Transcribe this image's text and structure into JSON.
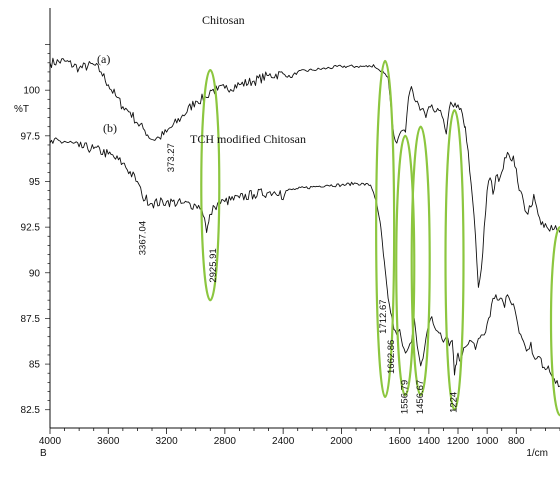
{
  "chart_data": {
    "type": "line",
    "title": "Chitosan",
    "ylabel": "%T",
    "xlabel": "1/cm",
    "x_axis_marker": "B",
    "xlim": [
      4000,
      500
    ],
    "ylim": [
      81.5,
      104.5
    ],
    "x_ticks": [
      4000,
      3600,
      3200,
      2800,
      2400,
      2000,
      1600,
      1400,
      1200,
      1000,
      800
    ],
    "x_tick_labels": [
      "4000",
      "3600",
      "3200",
      "2800",
      "2400",
      "2000",
      "1600",
      "1400",
      "1200",
      "1000",
      "800"
    ],
    "y_ticks": [
      100,
      97.5,
      95,
      92.5,
      90,
      87.5,
      85,
      82.5
    ],
    "y_tick_labels": [
      "100",
      "97.5",
      "95",
      "92.5",
      "90",
      "87.5",
      "85",
      "82.5"
    ],
    "grid": false,
    "series": [
      {
        "name": "Chitosan",
        "marker": "(a)",
        "color": "#111111",
        "x": [
          4000,
          3900,
          3800,
          3700,
          3650,
          3600,
          3550,
          3500,
          3450,
          3400,
          3350,
          3300,
          3250,
          3200,
          3100,
          3000,
          2925,
          2900,
          2850,
          2800,
          2700,
          2600,
          2500,
          2400,
          2350,
          2300,
          2200,
          2100,
          2000,
          1900,
          1800,
          1780,
          1760,
          1740,
          1712,
          1700,
          1680,
          1655,
          1640,
          1620,
          1600,
          1580,
          1560,
          1540,
          1520,
          1500,
          1480,
          1460,
          1440,
          1420,
          1400,
          1380,
          1360,
          1340,
          1320,
          1300,
          1280,
          1260,
          1240,
          1220,
          1200,
          1180,
          1160,
          1150,
          1100,
          1080,
          1060,
          1040,
          1020,
          1000,
          980,
          960,
          940,
          920,
          900,
          880,
          860,
          840,
          820,
          800,
          780,
          760,
          740,
          720,
          700,
          680,
          660,
          640,
          620,
          600,
          580,
          560,
          540,
          520,
          500
        ],
        "y": [
          101.5,
          101.6,
          101.2,
          101.4,
          101.0,
          100.3,
          99.7,
          99.1,
          98.8,
          98.2,
          97.8,
          97.3,
          97.4,
          97.7,
          98.5,
          99.4,
          99.6,
          100.0,
          100.0,
          100.1,
          100.3,
          100.5,
          100.8,
          100.9,
          100.7,
          101.0,
          101.1,
          101.2,
          101.3,
          101.3,
          101.3,
          101.4,
          101.2,
          101.1,
          101.0,
          100.9,
          100.7,
          98.6,
          97.5,
          97.1,
          97.6,
          97.8,
          97.7,
          99.6,
          100.2,
          99.5,
          99.4,
          98.9,
          99.0,
          98.5,
          99.1,
          99.2,
          98.8,
          99.0,
          98.9,
          98.4,
          97.6,
          99.0,
          99.2,
          99.3,
          99.2,
          99.0,
          98.2,
          98.0,
          94.0,
          92.0,
          89.2,
          90.2,
          92.5,
          94.5,
          95.2,
          94.3,
          95.3,
          95.0,
          95.5,
          96.3,
          96.6,
          96.2,
          96.4,
          95.7,
          94.5,
          94.3,
          93.4,
          93.2,
          93.6,
          94.3,
          93.6,
          93.0,
          92.8,
          92.7,
          92.4,
          92.6,
          92.4,
          92.3,
          92.2
        ]
      },
      {
        "name": "TCH modified Chitosan",
        "marker": "(b)",
        "color": "#111111",
        "x": [
          4000,
          3900,
          3800,
          3700,
          3600,
          3500,
          3400,
          3367,
          3300,
          3200,
          3100,
          3000,
          2960,
          2940,
          2925,
          2910,
          2900,
          2870,
          2850,
          2800,
          2700,
          2600,
          2500,
          2420,
          2400,
          2380,
          2300,
          2200,
          2100,
          2000,
          1900,
          1800,
          1780,
          1760,
          1740,
          1730,
          1712,
          1700,
          1690,
          1680,
          1662,
          1650,
          1640,
          1620,
          1600,
          1580,
          1560,
          1540,
          1520,
          1500,
          1480,
          1456,
          1440,
          1420,
          1400,
          1380,
          1360,
          1340,
          1320,
          1300,
          1280,
          1260,
          1240,
          1224,
          1210,
          1200,
          1180,
          1160,
          1140,
          1120,
          1100,
          1080,
          1060,
          1040,
          1020,
          1000,
          980,
          960,
          940,
          920,
          900,
          880,
          860,
          840,
          820,
          800,
          780,
          760,
          740,
          720,
          700,
          680,
          660,
          640,
          620,
          600,
          580,
          560,
          540,
          520,
          500
        ],
        "y": [
          97.1,
          97.2,
          96.9,
          96.8,
          96.5,
          96.0,
          95.0,
          94.2,
          93.8,
          93.9,
          93.8,
          93.7,
          93.6,
          93.0,
          92.2,
          92.8,
          93.2,
          93.6,
          93.8,
          93.9,
          94.1,
          94.3,
          94.4,
          94.5,
          94.0,
          94.5,
          94.6,
          94.7,
          94.8,
          94.8,
          94.9,
          94.8,
          94.4,
          93.9,
          93.0,
          92.5,
          91.0,
          90.2,
          89.4,
          88.6,
          87.8,
          87.4,
          86.9,
          86.6,
          86.9,
          86.0,
          85.6,
          85.9,
          86.2,
          87.5,
          86.0,
          84.9,
          85.3,
          86.4,
          87.2,
          87.6,
          87.0,
          86.8,
          86.7,
          86.2,
          86.5,
          86.0,
          86.3,
          84.4,
          85.0,
          85.6,
          85.1,
          85.9,
          86.0,
          86.3,
          86.2,
          85.8,
          86.4,
          86.6,
          86.6,
          87.2,
          87.6,
          88.6,
          88.8,
          88.5,
          88.6,
          88.1,
          88.8,
          88.4,
          88.3,
          87.6,
          86.7,
          86.4,
          86.0,
          85.8,
          86.2,
          85.4,
          85.3,
          85.4,
          84.8,
          84.7,
          84.9,
          84.4,
          84.2,
          84.1,
          83.8
        ]
      }
    ],
    "annotations": [
      {
        "text": "373.27",
        "x": 3150,
        "y": 96.3,
        "rotate": -90
      },
      {
        "text": "3367.04",
        "x": 3345,
        "y": 91.9,
        "rotate": -90
      },
      {
        "text": "2925.91",
        "x": 2860,
        "y": 90.4,
        "rotate": -90
      },
      {
        "text": "1712.67",
        "x": 1695,
        "y": 87.6,
        "rotate": -90
      },
      {
        "text": "1662.86",
        "x": 1640,
        "y": 85.4,
        "rotate": -90
      },
      {
        "text": "1556.79",
        "x": 1545,
        "y": 83.2,
        "rotate": -90
      },
      {
        "text": "1456.67",
        "x": 1440,
        "y": 83.2,
        "rotate": -90
      },
      {
        "text": "1224",
        "x": 1210,
        "y": 82.9,
        "rotate": -90
      }
    ],
    "highlight_color": "#8cc63f",
    "highlights": [
      {
        "cx": 2900,
        "cy": 94.8,
        "ry_span": [
          88.5,
          101.1
        ]
      },
      {
        "cx": 1700,
        "cy": 92.6,
        "ry_span": [
          83.2,
          101.6
        ]
      },
      {
        "cx": 1562,
        "cy": 90.5,
        "ry_span": [
          83.3,
          97.5
        ]
      },
      {
        "cx": 1456,
        "cy": 90.5,
        "ry_span": [
          83.3,
          98.0
        ]
      },
      {
        "cx": 1224,
        "cy": 90.5,
        "ry_span": [
          82.5,
          98.9
        ]
      },
      {
        "cx": 500,
        "cy": 87.2,
        "ry_span": [
          82.2,
          92.5
        ]
      }
    ]
  }
}
